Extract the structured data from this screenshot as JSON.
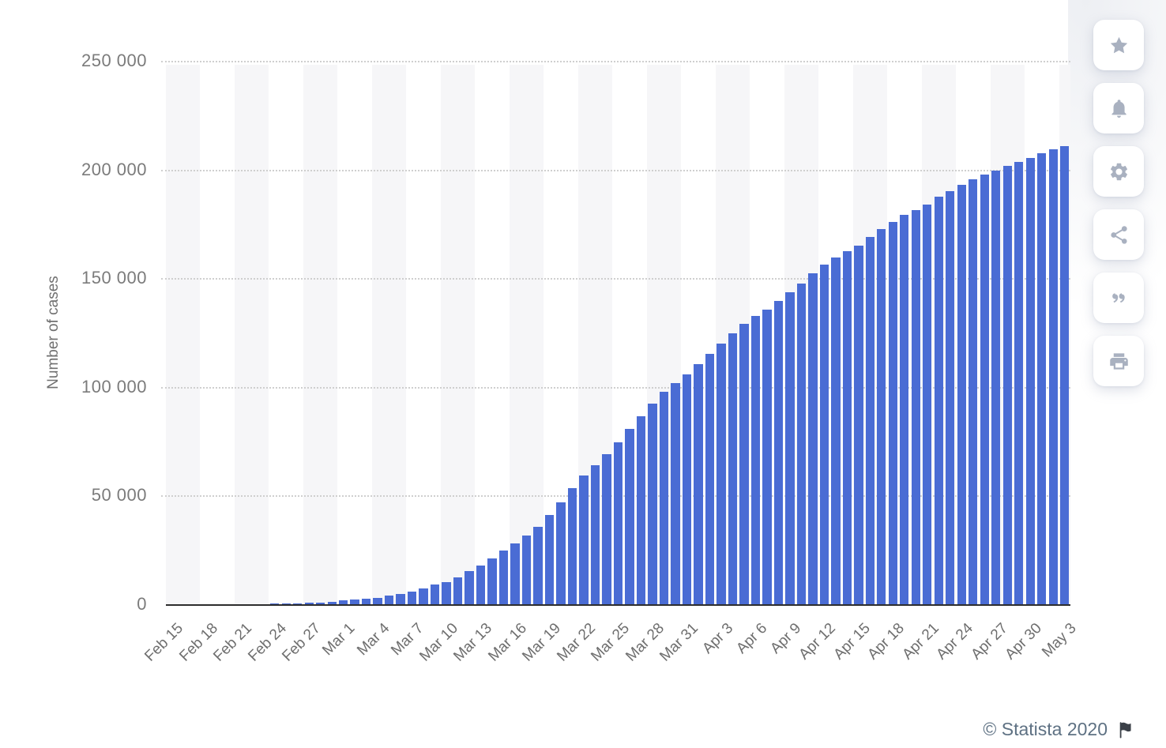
{
  "chart_data": {
    "type": "bar",
    "title": "",
    "xlabel": "",
    "ylabel": "Number of cases",
    "ylim": [
      0,
      250000
    ],
    "ytick_step": 50000,
    "ytick_labels": [
      "0",
      "50 000",
      "100 000",
      "150 000",
      "200 000",
      "250 000"
    ],
    "grid": "horizontal-dotted",
    "legend": "none",
    "bar_color": "#4a6cd4",
    "plot_stripe_color": "#f6f6f8",
    "tick_every": 3,
    "x_tick_labels": [
      "Feb 15",
      "Feb 18",
      "Feb 21",
      "Feb 24",
      "Feb 27",
      "Mar 1",
      "Mar 4",
      "Mar 7",
      "Mar 10",
      "Mar 13",
      "Mar 16",
      "Mar 19",
      "Mar 22",
      "Mar 25",
      "Mar 28",
      "Mar 31",
      "Apr 3",
      "Apr 6",
      "Apr 9",
      "Apr 12",
      "Apr 15",
      "Apr 18",
      "Apr 21",
      "Apr 24",
      "Apr 27",
      "Apr 30",
      "May 3"
    ],
    "x": [
      "Feb 15",
      "Feb 16",
      "Feb 17",
      "Feb 18",
      "Feb 19",
      "Feb 20",
      "Feb 21",
      "Feb 22",
      "Feb 23",
      "Feb 24",
      "Feb 25",
      "Feb 26",
      "Feb 27",
      "Feb 28",
      "Feb 29",
      "Mar 1",
      "Mar 2",
      "Mar 3",
      "Mar 4",
      "Mar 5",
      "Mar 6",
      "Mar 7",
      "Mar 8",
      "Mar 9",
      "Mar 10",
      "Mar 11",
      "Mar 12",
      "Mar 13",
      "Mar 14",
      "Mar 15",
      "Mar 16",
      "Mar 17",
      "Mar 18",
      "Mar 19",
      "Mar 20",
      "Mar 21",
      "Mar 22",
      "Mar 23",
      "Mar 24",
      "Mar 25",
      "Mar 26",
      "Mar 27",
      "Mar 28",
      "Mar 29",
      "Mar 30",
      "Mar 31",
      "Apr 1",
      "Apr 2",
      "Apr 3",
      "Apr 4",
      "Apr 5",
      "Apr 6",
      "Apr 7",
      "Apr 8",
      "Apr 9",
      "Apr 10",
      "Apr 11",
      "Apr 12",
      "Apr 13",
      "Apr 14",
      "Apr 15",
      "Apr 16",
      "Apr 17",
      "Apr 18",
      "Apr 19",
      "Apr 20",
      "Apr 21",
      "Apr 22",
      "Apr 23",
      "Apr 24",
      "Apr 25",
      "Apr 26",
      "Apr 27",
      "Apr 28",
      "Apr 29",
      "Apr 30",
      "May 1",
      "May 2",
      "May 3"
    ],
    "values": [
      3,
      3,
      3,
      3,
      3,
      3,
      20,
      79,
      155,
      229,
      322,
      400,
      650,
      888,
      1128,
      1694,
      2036,
      2502,
      3089,
      3858,
      4636,
      5883,
      7375,
      9172,
      10149,
      12462,
      15113,
      17660,
      21157,
      24747,
      27980,
      31506,
      35713,
      41035,
      47021,
      53578,
      59138,
      63927,
      69176,
      74386,
      80539,
      86498,
      92472,
      97689,
      101739,
      105792,
      110574,
      115242,
      119827,
      124632,
      128948,
      132547,
      135586,
      139422,
      143626,
      147577,
      152271,
      156363,
      159516,
      162488,
      165155,
      168941,
      172434,
      175925,
      178972,
      181228,
      183957,
      187327,
      189973,
      192994,
      195351,
      197675,
      199414,
      201505,
      203591,
      205463,
      207428,
      209328,
      210717
    ]
  },
  "sidebar": {
    "buttons": [
      {
        "name": "favorite-button",
        "icon": "star-icon"
      },
      {
        "name": "notifications-button",
        "icon": "bell-icon"
      },
      {
        "name": "settings-button",
        "icon": "gear-icon"
      },
      {
        "name": "share-button",
        "icon": "share-icon"
      },
      {
        "name": "cite-button",
        "icon": "quote-icon"
      },
      {
        "name": "print-button",
        "icon": "printer-icon"
      }
    ]
  },
  "footer": {
    "copyright": "© Statista 2020",
    "flag_icon": "flag-icon",
    "flag_color": "#3b4048"
  }
}
